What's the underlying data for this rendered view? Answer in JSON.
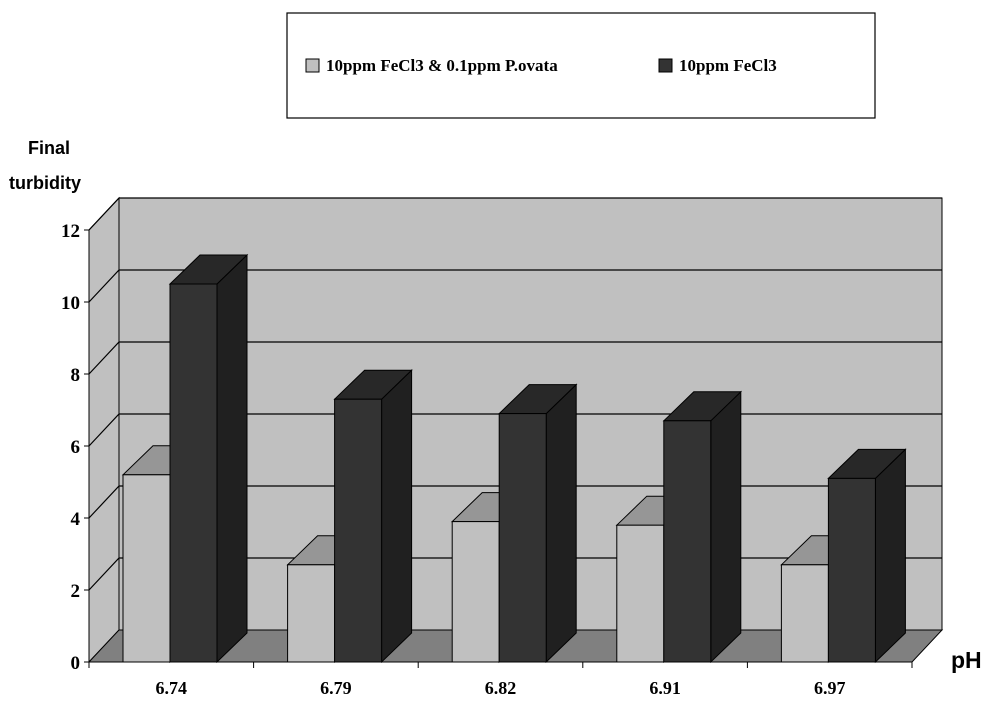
{
  "chart_data": {
    "type": "bar",
    "ylabel_lines": [
      "Final",
      "turbidity"
    ],
    "xlabel": "pH",
    "categories": [
      "6.74",
      "6.79",
      "6.82",
      "6.91",
      "6.97"
    ],
    "series": [
      {
        "name": "10ppm FeCl3 & 0.1ppm P.ovata",
        "color": "#c0c0c0",
        "values": [
          5.2,
          2.7,
          3.9,
          3.8,
          2.7
        ]
      },
      {
        "name": "10ppm FeCl3",
        "color": "#333333",
        "values": [
          10.5,
          7.3,
          6.9,
          6.7,
          5.1
        ]
      }
    ],
    "ylim": [
      0,
      12
    ],
    "yticks": [
      "0",
      "2",
      "4",
      "6",
      "8",
      "10",
      "12"
    ],
    "grid": true,
    "legend_position": "top",
    "three_d": true,
    "background_color": "#c0c0c0",
    "floor_color": "#808080"
  }
}
